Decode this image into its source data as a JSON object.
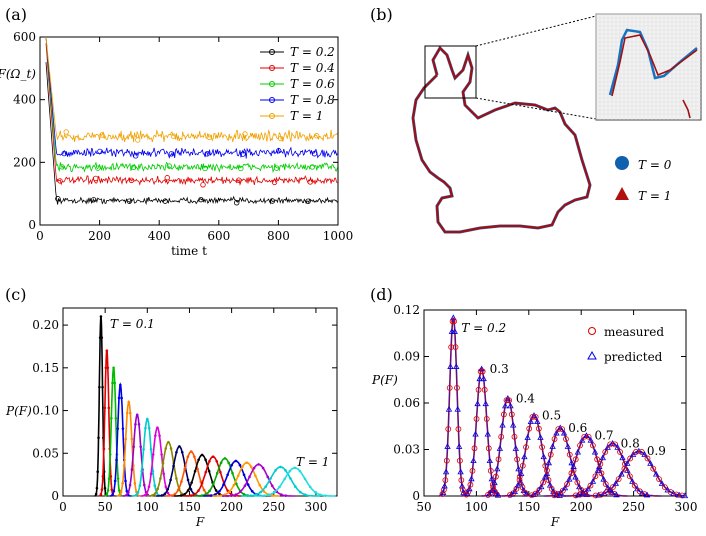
{
  "panels": {
    "a_label": "(a)",
    "b_label": "(b)",
    "c_label": "(c)",
    "d_label": "(d)"
  },
  "chart_data": [
    {
      "id": "a",
      "type": "line",
      "ylabel": "F(Ω_t)",
      "xlabel": "time t",
      "xlim": [
        0,
        1000
      ],
      "ylim": [
        0,
        600
      ],
      "xticks": [
        "0",
        "200",
        "400",
        "600",
        "800",
        "1000"
      ],
      "yticks": [
        "0",
        "200",
        "400",
        "600"
      ],
      "series": [
        {
          "name": "T = 0.2",
          "color": "#000000",
          "marker": "circle",
          "start": 520,
          "mean": 78,
          "noise": 8
        },
        {
          "name": "T = 0.4",
          "color": "#e00000",
          "marker": "square",
          "start": 580,
          "mean": 142,
          "noise": 10
        },
        {
          "name": "T = 0.6",
          "color": "#00cc00",
          "marker": "diamond",
          "start": 600,
          "mean": 185,
          "noise": 11
        },
        {
          "name": "T = 0.8",
          "color": "#0000ee",
          "marker": "triangle",
          "start": 600,
          "mean": 230,
          "noise": 12
        },
        {
          "name": "T = 1",
          "color": "#f0a000",
          "marker": "x",
          "start": 600,
          "mean": 283,
          "noise": 14
        }
      ]
    },
    {
      "id": "c",
      "type": "line",
      "ylabel": "P(F)",
      "xlabel": "F",
      "xlim": [
        0,
        325
      ],
      "ylim": [
        0,
        0.22
      ],
      "xticks": [
        "0",
        "50",
        "100",
        "150",
        "200",
        "250",
        "300"
      ],
      "yticks": [
        "0",
        "0.05",
        "0.10",
        "0.15",
        "0.20"
      ],
      "annotations": [
        "T = 0.1",
        "T = 1"
      ],
      "series": [
        {
          "T": 0.1,
          "mean": 45,
          "peak": 0.21,
          "color": "#000000"
        },
        {
          "T": 0.15,
          "mean": 52,
          "peak": 0.17,
          "color": "#e00000"
        },
        {
          "T": 0.2,
          "mean": 60,
          "peak": 0.15,
          "color": "#00bb00"
        },
        {
          "T": 0.25,
          "mean": 68,
          "peak": 0.13,
          "color": "#0000ee"
        },
        {
          "T": 0.3,
          "mean": 78,
          "peak": 0.11,
          "color": "#ff8800"
        },
        {
          "T": 0.35,
          "mean": 88,
          "peak": 0.095,
          "color": "#9900cc"
        },
        {
          "T": 0.4,
          "mean": 100,
          "peak": 0.09,
          "color": "#00cccc"
        },
        {
          "T": 0.45,
          "mean": 112,
          "peak": 0.08,
          "color": "#dd00dd"
        },
        {
          "T": 0.5,
          "mean": 125,
          "peak": 0.063,
          "color": "#888800"
        },
        {
          "T": 0.55,
          "mean": 138,
          "peak": 0.058,
          "color": "#000066"
        },
        {
          "T": 0.6,
          "mean": 152,
          "peak": 0.052,
          "color": "#ff5500"
        },
        {
          "T": 0.65,
          "mean": 165,
          "peak": 0.048,
          "color": "#000000"
        },
        {
          "T": 0.7,
          "mean": 178,
          "peak": 0.046,
          "color": "#dd0000"
        },
        {
          "T": 0.75,
          "mean": 192,
          "peak": 0.044,
          "color": "#00aa00"
        },
        {
          "T": 0.8,
          "mean": 205,
          "peak": 0.041,
          "color": "#0000dd"
        },
        {
          "T": 0.85,
          "mean": 218,
          "peak": 0.039,
          "color": "#ff9900"
        },
        {
          "T": 0.9,
          "mean": 232,
          "peak": 0.037,
          "color": "#aa00cc"
        },
        {
          "T": 0.95,
          "mean": 258,
          "peak": 0.034,
          "color": "#00cccc"
        },
        {
          "T": 1.0,
          "mean": 275,
          "peak": 0.033,
          "color": "#22dddd"
        }
      ]
    },
    {
      "id": "d",
      "type": "line",
      "ylabel": "P(F)",
      "xlabel": "F",
      "xlim": [
        50,
        300
      ],
      "ylim": [
        0,
        0.12
      ],
      "xticks": [
        "50",
        "100",
        "150",
        "200",
        "250",
        "300"
      ],
      "yticks": [
        "0",
        "0.03",
        "0.06",
        "0.09",
        "0.12"
      ],
      "legend": [
        "measured",
        "predicted"
      ],
      "series": [
        {
          "label": "T = 0.2",
          "mean": 78,
          "peak": 0.115
        },
        {
          "label": "0.3",
          "mean": 105,
          "peak": 0.082
        },
        {
          "label": "0.4",
          "mean": 130,
          "peak": 0.063
        },
        {
          "label": "0.5",
          "mean": 155,
          "peak": 0.052
        },
        {
          "label": "0.6",
          "mean": 180,
          "peak": 0.044
        },
        {
          "label": "0.7",
          "mean": 205,
          "peak": 0.039
        },
        {
          "label": "0.8",
          "mean": 230,
          "peak": 0.034
        },
        {
          "label": "0.9",
          "mean": 255,
          "peak": 0.029
        }
      ]
    }
  ],
  "panel_b": {
    "legend": [
      {
        "label": "T = 0",
        "color": "#1060b0",
        "marker": "circle"
      },
      {
        "label": "T = 1",
        "color": "#b01010",
        "marker": "triangle"
      }
    ]
  }
}
